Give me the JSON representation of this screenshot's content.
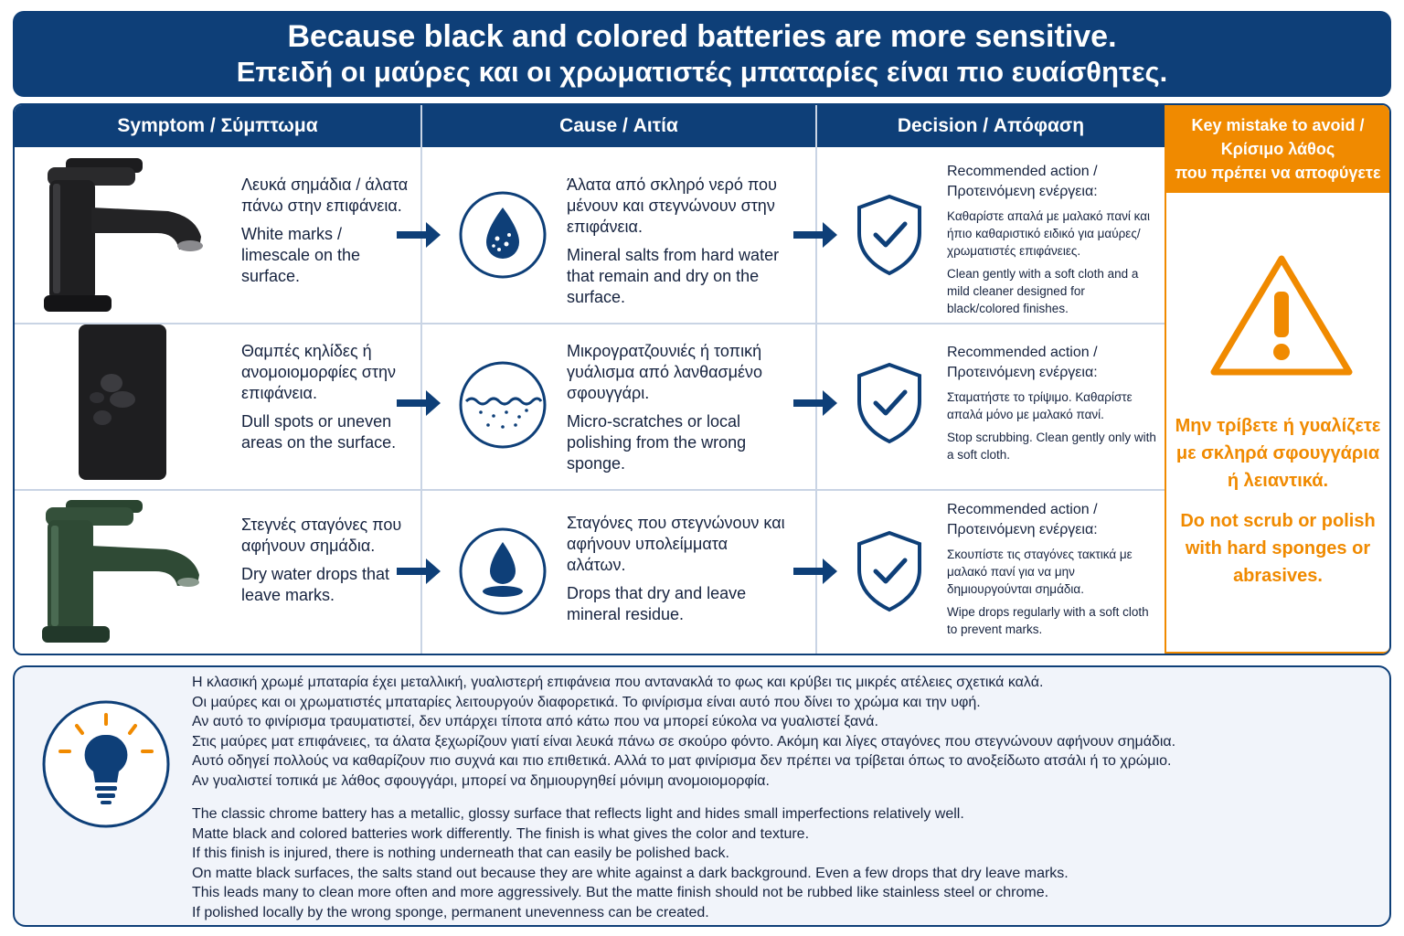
{
  "header": {
    "title_en": "Because black and colored batteries are more sensitive.",
    "title_gr": "Επειδή οι μαύρες και οι χρωματιστές μπαταρίες είναι πιο ευαίσθητες."
  },
  "columns": {
    "symptom": "Symptom / Σύμπτωμα",
    "cause": "Cause / Αιτία",
    "decision": "Decision / Απόφαση"
  },
  "rows": [
    {
      "symptom_gr": "Λευκά σημάδια / άλατα πάνω στην επιφάνεια.",
      "symptom_en": "White marks / limescale on the surface.",
      "cause_gr": "Άλατα από σκληρό νερό που μένουν και στεγνώνουν στην επιφάνεια.",
      "cause_en": "Mineral salts from hard water that remain and dry on the surface.",
      "decision_header": "Recommended action / Προτεινόμενη ενέργεια:",
      "decision_gr": "Καθαρίστε απαλά με μαλακό πανί και ήπιο καθαριστικό ειδικό για μαύρες/χρωματιστές επιφάνειες.",
      "decision_en": "Clean gently with a soft cloth and a mild cleaner designed for black/colored finishes."
    },
    {
      "symptom_gr": "Θαμπές κηλίδες ή ανομοιομορφίες στην επιφάνεια.",
      "symptom_en": "Dull spots or uneven areas on the surface.",
      "cause_gr": "Μικρογρατζουνιές ή τοπική γυάλισμα από λανθασμένο σφουγγάρι.",
      "cause_en": "Micro-scratches or local polishing from the wrong sponge.",
      "decision_header": "Recommended action / Προτεινόμενη ενέργεια:",
      "decision_gr": "Σταματήστε το τρίψιμο. Καθαρίστε απαλά μόνο με μαλακό πανί.",
      "decision_en": "Stop scrubbing. Clean gently only with a soft cloth."
    },
    {
      "symptom_gr": "Στεγνές σταγόνες που αφήνουν σημάδια.",
      "symptom_en": "Dry water drops that leave marks.",
      "cause_gr": "Σταγόνες που στεγνώνουν και αφήνουν υπολείμματα αλάτων.",
      "cause_en": "Drops that dry and leave mineral residue.",
      "decision_header": "Recommended action / Προτεινόμενη ενέργεια:",
      "decision_gr": "Σκουπίστε τις σταγόνες τακτικά με μαλακό πανί για να μην δημιουργούνται σημάδια.",
      "decision_en": "Wipe drops regularly with a soft cloth to prevent marks."
    }
  ],
  "key_mistake": {
    "header_1": "Key mistake to avoid /",
    "header_2": "Κρίσιμο λάθος",
    "header_3": "που πρέπει να αποφύγετε",
    "text_gr": "Μην τρίβετε ή γυαλίζετε με σκληρά σφουγγάρια ή λειαντικά.",
    "text_en": "Do not scrub or polish with hard sponges or abrasives."
  },
  "info": {
    "gr_lines": [
      "Η κλασική χρωμέ μπαταρία έχει μεταλλική, γυαλιστερή επιφάνεια που αντανακλά το φως και κρύβει τις μικρές ατέλειες σχετικά καλά.",
      "Οι μαύρες και οι χρωματιστές μπαταρίες λειτουργούν διαφορετικά. Το φινίρισμα είναι αυτό που δίνει το χρώμα και την υφή.",
      "Αν αυτό το φινίρισμα τραυματιστεί, δεν υπάρχει τίποτα από κάτω που να μπορεί εύκολα να γυαλιστεί ξανά.",
      "Στις μαύρες ματ επιφάνειες, τα άλατα ξεχωρίζουν γιατί είναι λευκά πάνω σε σκούρο φόντο. Ακόμη και λίγες σταγόνες που στεγνώνουν αφήνουν σημάδια.",
      "Αυτό οδηγεί πολλούς να καθαρίζουν πιο συχνά και πιο επιθετικά. Αλλά το ματ φινίρισμα δεν πρέπει να τρίβεται όπως το ανοξείδωτο ατσάλι ή το χρώμιο.",
      "Αν γυαλιστεί τοπικά με λάθος σφουγγάρι, μπορεί να δημιουργηθεί μόνιμη ανομοιομορφία."
    ],
    "en_lines": [
      "The classic chrome battery has a metallic, glossy surface that reflects light and hides small imperfections relatively well.",
      "Matte black and colored batteries work differently. The finish is what gives the color and texture.",
      "If this finish is injured, there is nothing underneath that can easily be polished back.",
      "On matte black surfaces, the salts stand out because they are white against a dark background. Even a few drops that dry leave marks.",
      "This leads many to clean more often and more aggressively. But the matte finish should not be rubbed like stainless steel or chrome.",
      "If polished locally by the wrong sponge, permanent unevenness can be created."
    ]
  },
  "icons": {
    "faucet_black": "black-faucet-icon",
    "pipe_black": "black-pipe-icon",
    "faucet_green": "green-faucet-icon",
    "arrow": "arrow-right-icon",
    "cause_1": "water-drop-salts-icon",
    "cause_2": "scratched-surface-icon",
    "cause_3": "water-drop-icon",
    "shield": "shield-check-icon",
    "warning": "warning-triangle-icon",
    "bulb": "lightbulb-icon"
  },
  "colors": {
    "navy": "#0e3f78",
    "orange": "#f08a00",
    "info_bg": "#f1f4fa",
    "green_faucet": "#2f4a35"
  }
}
